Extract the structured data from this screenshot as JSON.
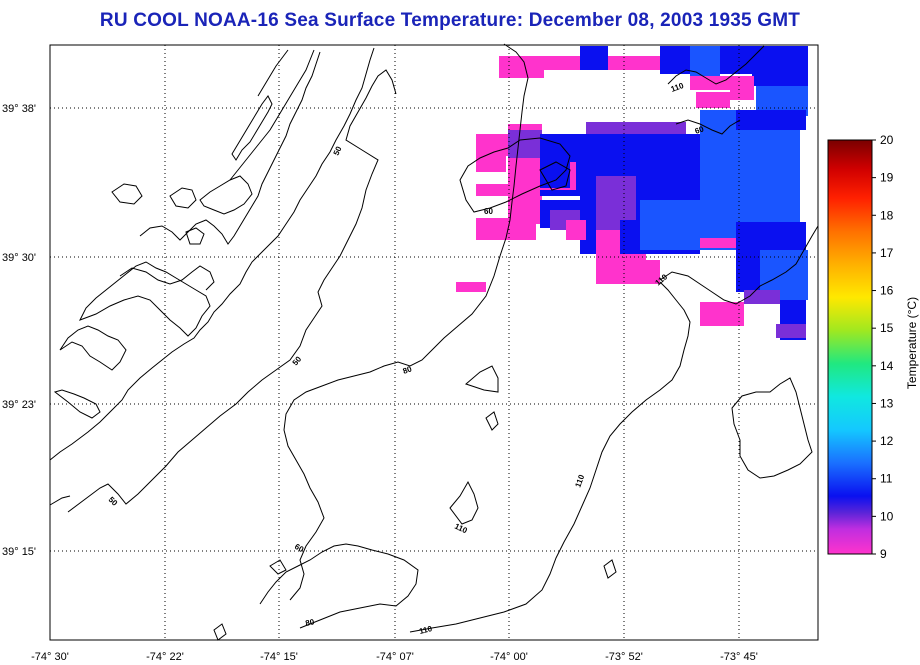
{
  "title": "RU COOL  NOAA-16  Sea Surface Temperature:  December 08, 2003 1935 GMT",
  "axes": {
    "lat_ticks": [
      "39° 38'",
      "39° 30'",
      "39° 23'",
      "39° 15'"
    ],
    "lon_ticks": [
      "-74° 30'",
      "-74° 22'",
      "-74° 15'",
      "-74° 07'",
      "-74° 00'",
      "-73° 52'",
      "-73° 45'"
    ]
  },
  "colorbar": {
    "label": "Temperature (°C)",
    "ticks": [
      "9",
      "10",
      "11",
      "12",
      "13",
      "14",
      "15",
      "16",
      "17",
      "18",
      "19",
      "20"
    ],
    "min": 9,
    "max": 20
  },
  "bathymetry_labels": [
    "50",
    "50",
    "50",
    "60",
    "60",
    "80",
    "110",
    "110",
    "110",
    "110",
    "110"
  ],
  "colors": {
    "title": "#1a24b8",
    "coast": "#000000",
    "grid": "#000000",
    "sst_9": "#ff33cc",
    "sst_10": "#7a2fd8",
    "sst_11": "#0a10f0",
    "sst_12": "#1a55ff"
  }
}
